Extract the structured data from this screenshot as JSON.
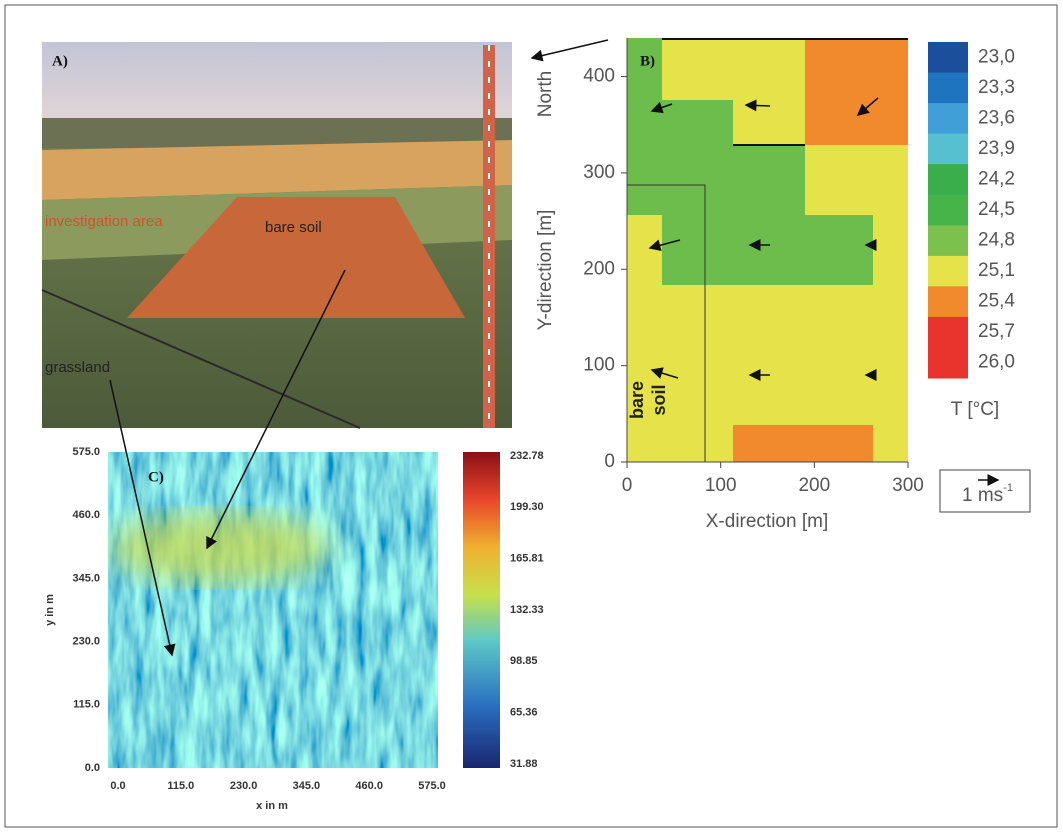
{
  "panel_a": {
    "label": "A)",
    "annotations": [
      "investigation area",
      "bare soil",
      "grassland"
    ]
  },
  "panel_b": {
    "label": "B)",
    "xlabel": "X-direction [m]",
    "ylabel": "Y-direction [m]",
    "north": "North",
    "bare_soil": [
      "bare",
      "soil"
    ],
    "xticks": [
      0,
      100,
      200,
      300
    ],
    "yticks": [
      0,
      100,
      200,
      300,
      400
    ],
    "xlim": [
      0,
      300
    ],
    "ylim": [
      0,
      440
    ],
    "colorbar": {
      "labels": [
        "23,0",
        "23,3",
        "23,6",
        "23,9",
        "24,2",
        "24,5",
        "24,8",
        "25,1",
        "25,4",
        "25,7",
        "26,0"
      ],
      "colors": [
        "#1b4f9c",
        "#1f74bf",
        "#3f9fd6",
        "#56c0d0",
        "#3aae4a",
        "#46b449",
        "#7cc04e",
        "#e6e34a",
        "#f08a2c",
        "#e8342c",
        "#e8342c"
      ],
      "title": "T [°C]"
    },
    "wind_scale": [
      "1 ms",
      "-1"
    ]
  },
  "panel_c": {
    "label": "C)",
    "xlabel": "x in m",
    "ylabel": "y in m",
    "xticks": [
      "0.0",
      "115.0",
      "230.0",
      "345.0",
      "460.0",
      "575.0"
    ],
    "yticks": [
      "0.0",
      "115.0",
      "230.0",
      "345.0",
      "460.0",
      "575.0"
    ],
    "colorbar_labels": [
      "232.78",
      "199.30",
      "165.81",
      "132.33",
      "98.85",
      "65.36",
      "31.88"
    ]
  }
}
